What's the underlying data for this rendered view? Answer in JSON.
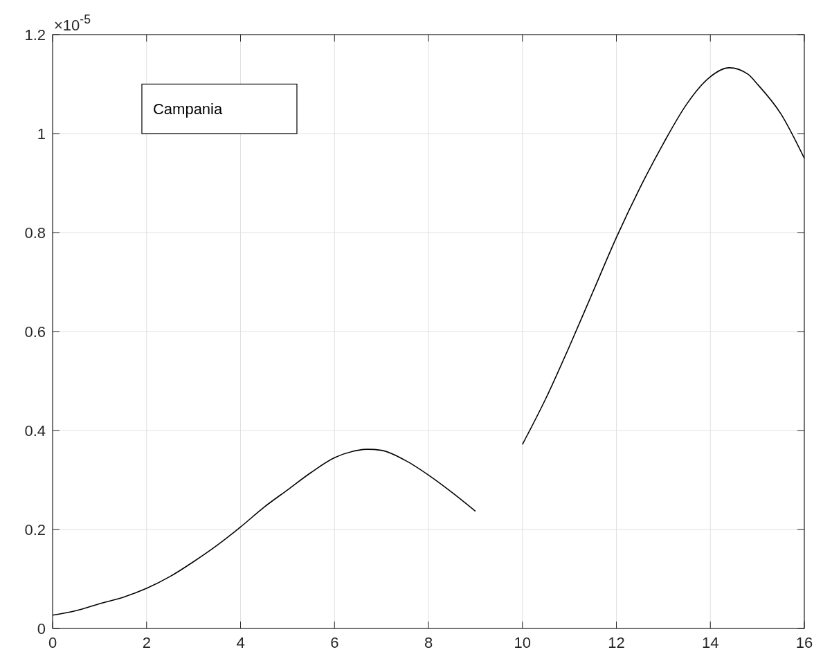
{
  "chart_data": {
    "type": "line",
    "x": [
      0,
      0.5,
      1,
      1.5,
      2,
      2.5,
      3,
      3.5,
      4,
      4.5,
      5,
      5.5,
      6,
      6.5,
      6.7,
      7,
      7.5,
      8,
      8.5,
      9,
      9.5,
      10,
      10.5,
      11,
      11.5,
      12,
      12.5,
      13,
      13.5,
      14,
      14.4,
      14.8,
      15,
      15.5,
      16
    ],
    "series": [
      {
        "color": "#000000",
        "values": [
          0.027,
          0.036,
          0.05,
          0.063,
          0.081,
          0.105,
          0.135,
          0.168,
          0.205,
          0.245,
          0.28,
          0.315,
          0.345,
          0.36,
          0.362,
          0.36,
          0.34,
          0.31,
          0.275,
          0.237,
          null,
          0.372,
          0.465,
          0.57,
          0.68,
          0.79,
          0.89,
          0.98,
          1.06,
          1.115,
          1.133,
          1.12,
          1.1,
          1.04,
          0.95
        ]
      }
    ],
    "xlim": [
      0,
      16
    ],
    "xticks": [
      0,
      2,
      4,
      6,
      8,
      10,
      12,
      14,
      16
    ],
    "ylim": [
      0,
      1.2
    ],
    "yticks": [
      0,
      0.2,
      0.4,
      0.6,
      0.8,
      1,
      1.2
    ],
    "grid": true,
    "marker": "none",
    "line_style": "solid",
    "annotations": [
      "×10$^{-5}$",
      "Campania"
    ]
  }
}
